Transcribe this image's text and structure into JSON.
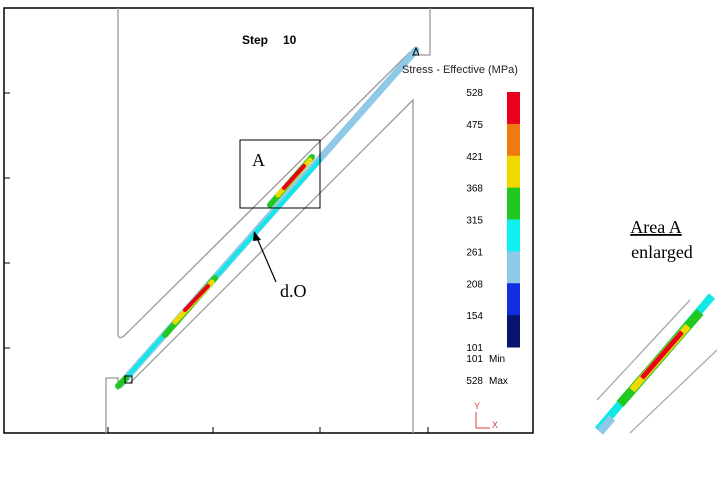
{
  "step": {
    "label": "Step",
    "number": "10"
  },
  "legend": {
    "title": "Stress - Effective (MPa)",
    "ticks": [
      528,
      475,
      421,
      368,
      315,
      261,
      208,
      154,
      101
    ],
    "colors": [
      "#e8001c",
      "#f07a10",
      "#f0d800",
      "#20c820",
      "#10f0f0",
      "#90c8e8",
      "#1030e0",
      "#081470"
    ],
    "min": {
      "value": 101,
      "label": "Min"
    },
    "max": {
      "value": 528,
      "label": "Max"
    }
  },
  "annotations": {
    "box": "A",
    "arrow": "d.O"
  },
  "axes_icon": {
    "y": "Y",
    "x": "X"
  },
  "inset": {
    "title": "Area A",
    "subtitle": "enlarged"
  }
}
